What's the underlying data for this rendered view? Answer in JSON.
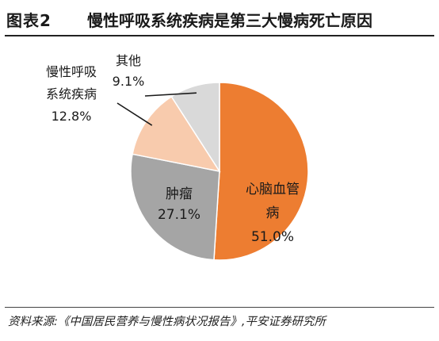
{
  "figure": {
    "number": "图表2",
    "title": "慢性呼吸系统疾病是第三大慢病死亡原因",
    "source": "资料来源:《中国居民营养与慢性病状况报告》,平安证券研究所"
  },
  "colors": {
    "cardio": "#ED7D31",
    "tumor": "#A5A5A5",
    "respiratory": "#F8CBAD",
    "other": "#D9D9D9",
    "leader": "#1a1a1a"
  },
  "chart_data": {
    "type": "pie",
    "title": "慢性呼吸系统疾病是第三大慢病死亡原因",
    "start": "12 o'clock",
    "direction": "clockwise",
    "legend": "none (slice labels)",
    "slices": [
      {
        "key": "cardio",
        "label": [
          "心脑血管",
          "病"
        ],
        "value": 51.0,
        "value_label": "51.0%",
        "color": "#ED7D31"
      },
      {
        "key": "tumor",
        "label": [
          "肿瘤"
        ],
        "value": 27.1,
        "value_label": "27.1%",
        "color": "#A5A5A5"
      },
      {
        "key": "respiratory",
        "label": [
          "慢性呼吸",
          "系统疾病"
        ],
        "value": 12.8,
        "value_label": "12.8%",
        "color": "#F8CBAD"
      },
      {
        "key": "other",
        "label": [
          "其他"
        ],
        "value": 9.1,
        "value_label": "9.1%",
        "color": "#D9D9D9"
      }
    ]
  }
}
